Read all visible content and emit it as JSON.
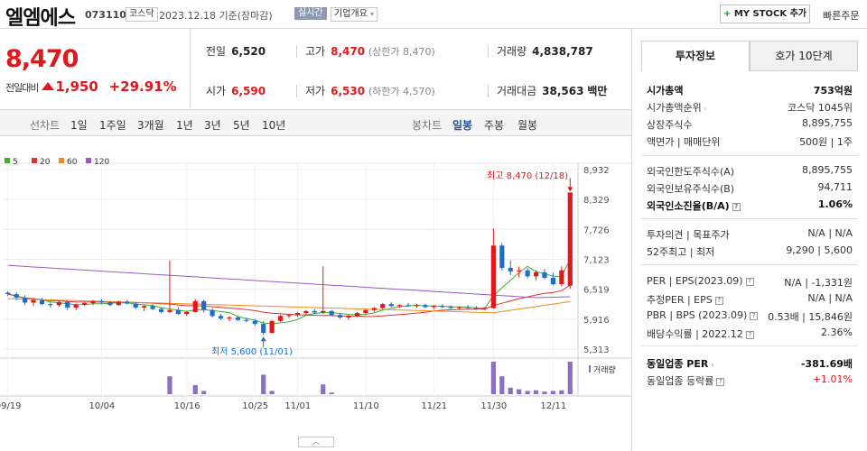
{
  "header": {
    "stock_name": "엘엠에스",
    "stock_code": "073110",
    "market": "코스닥",
    "date_text": "2023.12.18 기준(장마감)",
    "realtime": "실시간",
    "overview": "기업개요",
    "mystock": "MY STOCK 추가",
    "quick_order": "빠른주문"
  },
  "price": {
    "current": "8,470",
    "change_label": "전일대비",
    "change_value": "1,950",
    "change_pct": "+29.91%"
  },
  "stats": {
    "prev_label": "전일",
    "prev": "6,520",
    "high_label": "고가",
    "high": "8,470",
    "high_sub": "(상한가 8,470)",
    "volume_label": "거래량",
    "volume": "4,838,787",
    "open_label": "시가",
    "open": "6,590",
    "low_label": "저가",
    "low": "6,530",
    "low_sub": "(하한가 4,570)",
    "amount_label": "거래대금",
    "amount": "38,563",
    "amount_unit": "백만"
  },
  "toolbar": {
    "line_chart_label": "선차트",
    "periods": [
      "1일",
      "1주일",
      "3개월",
      "1년",
      "3년",
      "5년",
      "10년"
    ],
    "candle_label": "봉차트",
    "candle_periods": [
      "일봉",
      "주봉",
      "월봉"
    ],
    "active_candle": "일봉"
  },
  "chart_data": {
    "type": "candlestick",
    "legend": [
      "5",
      "20",
      "60",
      "120"
    ],
    "ma_colors": [
      "#3fae2a",
      "#e03030",
      "#f08a1e",
      "#9b59c4"
    ],
    "y_ticks": [
      "8,932",
      "8,329",
      "7,726",
      "7,123",
      "6,519",
      "5,916",
      "5,313"
    ],
    "ylim": [
      5313,
      8932
    ],
    "x_ticks": [
      "09/19",
      "10/04",
      "10/16",
      "10/25",
      "11/01",
      "11/10",
      "11/21",
      "11/30",
      "12/11"
    ],
    "high_annotation": "최고 8,470 (12/18)",
    "low_annotation": "최저 5,600 (11/01)",
    "volume_label": "거래량",
    "up_color": "#e2161b",
    "down_color": "#1e6ec8",
    "candles": [
      [
        6450,
        6480,
        6380,
        6420
      ],
      [
        6420,
        6460,
        6300,
        6350
      ],
      [
        6350,
        6400,
        6200,
        6250
      ],
      [
        6250,
        6330,
        6180,
        6300
      ],
      [
        6300,
        6340,
        6200,
        6220
      ],
      [
        6220,
        6260,
        6150,
        6200
      ],
      [
        6200,
        6280,
        6170,
        6260
      ],
      [
        6260,
        6300,
        6100,
        6150
      ],
      [
        6150,
        6230,
        6100,
        6210
      ],
      [
        6210,
        6260,
        6180,
        6240
      ],
      [
        6240,
        6300,
        6200,
        6280
      ],
      [
        6280,
        6320,
        6220,
        6250
      ],
      [
        6250,
        6280,
        6180,
        6200
      ],
      [
        6200,
        6290,
        6190,
        6270
      ],
      [
        6270,
        6300,
        6210,
        6230
      ],
      [
        6230,
        6260,
        6120,
        6150
      ],
      [
        6150,
        6200,
        6080,
        6180
      ],
      [
        6180,
        6220,
        6100,
        6120
      ],
      [
        6120,
        6150,
        6040,
        6060
      ],
      [
        6060,
        7100,
        6040,
        6100
      ],
      [
        6100,
        6160,
        6000,
        6020
      ],
      [
        6020,
        6080,
        5980,
        6060
      ],
      [
        6060,
        6320,
        6050,
        6280
      ],
      [
        6280,
        6300,
        6050,
        6100
      ],
      [
        6100,
        6140,
        5950,
        5980
      ],
      [
        5980,
        6020,
        5900,
        5930
      ],
      [
        5930,
        5980,
        5870,
        5950
      ],
      [
        5950,
        5990,
        5880,
        5900
      ],
      [
        5900,
        5950,
        5850,
        5880
      ],
      [
        5880,
        5920,
        5780,
        5820
      ],
      [
        5820,
        5870,
        5600,
        5640
      ],
      [
        5640,
        5900,
        5620,
        5880
      ],
      [
        5880,
        6000,
        5860,
        5980
      ],
      [
        5980,
        6020,
        5940,
        6000
      ],
      [
        6000,
        6060,
        5960,
        6040
      ],
      [
        6040,
        6100,
        6000,
        6080
      ],
      [
        6080,
        6120,
        6020,
        6050
      ],
      [
        6050,
        6980,
        6020,
        6080
      ],
      [
        6080,
        6100,
        5980,
        6000
      ],
      [
        6000,
        6040,
        5920,
        5950
      ],
      [
        5950,
        6000,
        5900,
        5980
      ],
      [
        5980,
        6060,
        5960,
        6040
      ],
      [
        6040,
        6120,
        6020,
        6100
      ],
      [
        6100,
        6160,
        6060,
        6140
      ],
      [
        6140,
        6240,
        6120,
        6220
      ],
      [
        6220,
        6260,
        6160,
        6180
      ],
      [
        6180,
        6220,
        6140,
        6200
      ],
      [
        6200,
        6240,
        6160,
        6180
      ],
      [
        6180,
        6220,
        6150,
        6200
      ],
      [
        6200,
        6230,
        6140,
        6160
      ],
      [
        6160,
        6200,
        6120,
        6180
      ],
      [
        6180,
        6220,
        6140,
        6160
      ],
      [
        6160,
        6190,
        6120,
        6140
      ],
      [
        6140,
        6180,
        6100,
        6160
      ],
      [
        6160,
        6200,
        6120,
        6140
      ],
      [
        6140,
        6180,
        6100,
        6120
      ],
      [
        6120,
        6160,
        6090,
        6140
      ],
      [
        6140,
        7750,
        6130,
        7400
      ],
      [
        7400,
        7450,
        6900,
        6950
      ],
      [
        6950,
        7100,
        6800,
        6880
      ],
      [
        6880,
        6980,
        6760,
        6900
      ],
      [
        6900,
        6950,
        6740,
        6780
      ],
      [
        6780,
        6900,
        6700,
        6860
      ],
      [
        6860,
        6920,
        6720,
        6750
      ],
      [
        6750,
        6850,
        6600,
        6620
      ],
      [
        6620,
        6980,
        6580,
        6900
      ],
      [
        6590,
        8470,
        6530,
        8470
      ]
    ],
    "volumes": [
      0,
      0,
      0,
      0,
      0,
      0,
      0,
      0,
      0,
      0,
      0,
      0,
      0,
      0,
      0,
      0,
      0,
      0,
      0,
      0.55,
      0,
      0,
      0.28,
      0.1,
      0,
      0,
      0,
      0,
      0,
      0,
      0.6,
      0.1,
      0,
      0,
      0,
      0,
      0,
      0.3,
      0.05,
      0,
      0,
      0,
      0,
      0,
      0,
      0,
      0,
      0,
      0,
      0,
      0,
      0,
      0,
      0,
      0,
      0,
      0,
      1.0,
      0.55,
      0.2,
      0.15,
      0.1,
      0.12,
      0.08,
      0.1,
      0.12,
      1.0
    ]
  },
  "panel": {
    "tab_invest": "투자정보",
    "tab_orderbook": "호가 10단계",
    "rows1": [
      {
        "l": "시가총액",
        "r": "753억원",
        "bold": true
      },
      {
        "l": "시가총액순위",
        "r": "코스닥 1045위",
        "chev": true
      },
      {
        "l": "상장주식수",
        "r": "8,895,755"
      },
      {
        "l": "액면가 | 매매단위",
        "r": "500원 | 1주"
      }
    ],
    "rows2": [
      {
        "l": "외국인한도주식수(A)",
        "r": "8,895,755"
      },
      {
        "l": "외국인보유주식수(B)",
        "r": "94,711"
      },
      {
        "l": "외국인소진율(B/A)",
        "r": "1.06%",
        "bold": true,
        "q": true
      }
    ],
    "rows3": [
      {
        "l": "투자의견 | 목표주가",
        "r": "N/A | N/A"
      },
      {
        "l": "52주최고 | 최저",
        "r": "9,290 | 5,600"
      }
    ],
    "rows4": [
      {
        "l": "PER | EPS(2023.09)",
        "r": "N/A | -1,331원",
        "q": true
      },
      {
        "l": "추정PER | EPS",
        "r": "N/A | N/A",
        "q": true
      },
      {
        "l": "PBR | BPS (2023.09)",
        "r": "0.53배 | 15,846원",
        "q": true
      },
      {
        "l": "배당수익률 | 2022.12",
        "r": "2.36%",
        "q": true
      }
    ],
    "rows5": [
      {
        "l": "동일업종 PER",
        "r": "-381.69배",
        "bold": true,
        "chev": true
      },
      {
        "l": "동일업종 등락률",
        "r": "+1.01%",
        "red": true,
        "q": true
      }
    ]
  }
}
